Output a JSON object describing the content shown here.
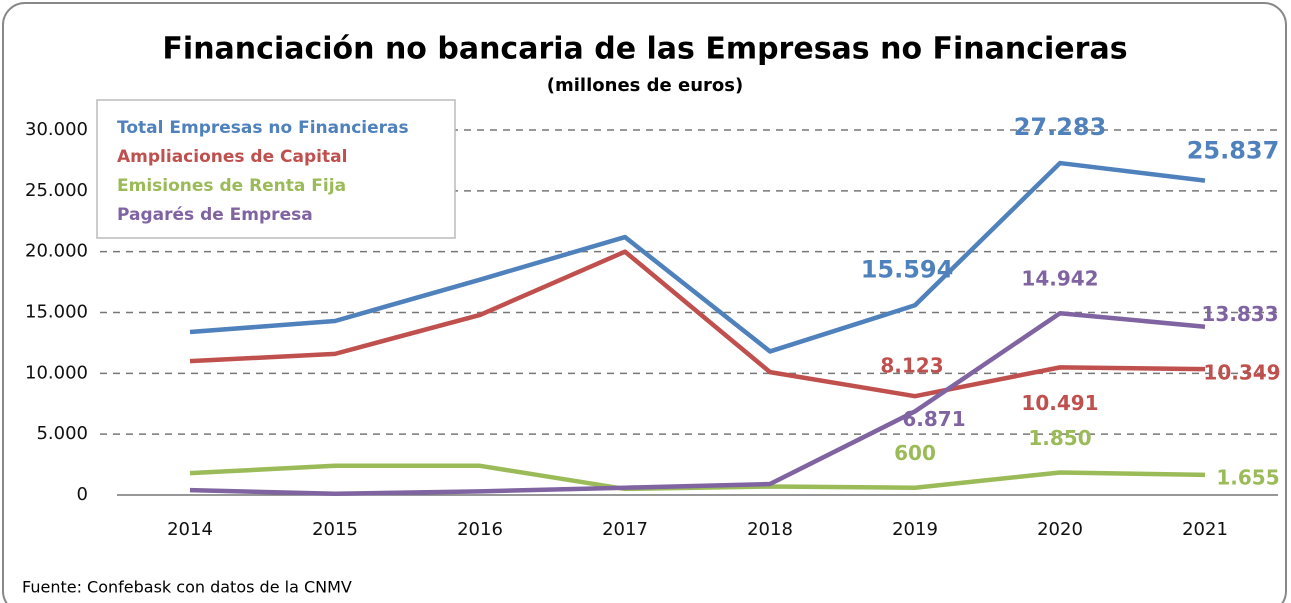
{
  "chart_data": {
    "type": "line",
    "title": "Financiación no bancaria de las Empresas no Financieras",
    "subtitle": "(millones de euros)",
    "source": "Fuente: Confebask con datos de la CNMV",
    "categories": [
      "2014",
      "2015",
      "2016",
      "2017",
      "2018",
      "2019",
      "2020",
      "2021"
    ],
    "series": [
      {
        "name": "Total Empresas no Financieras",
        "color": "#4f81bd",
        "values": [
          13400,
          14300,
          17700,
          21200,
          11800,
          15594,
          27283,
          25837
        ],
        "value_labels": [
          null,
          null,
          null,
          null,
          null,
          "15.594",
          "27.283",
          "25.837"
        ]
      },
      {
        "name": "Ampliaciones de Capital",
        "color": "#c0504d",
        "values": [
          11000,
          11600,
          14800,
          20000,
          10100,
          8123,
          10491,
          10349
        ],
        "value_labels": [
          null,
          null,
          null,
          null,
          null,
          "8.123",
          "10.491",
          "10.349"
        ]
      },
      {
        "name": "Emisiones de Renta Fija",
        "color": "#9bbb59",
        "values": [
          1800,
          2400,
          2400,
          500,
          700,
          600,
          1850,
          1655
        ],
        "value_labels": [
          null,
          null,
          null,
          null,
          null,
          "600",
          "1.850",
          "1.655"
        ]
      },
      {
        "name": "Pagarés de Empresa",
        "color": "#8064a2",
        "values": [
          400,
          100,
          300,
          600,
          900,
          6871,
          14942,
          13833
        ],
        "value_labels": [
          null,
          null,
          null,
          null,
          null,
          "6.871",
          "14.942",
          "13.833"
        ]
      }
    ],
    "ylim": [
      0,
      30000
    ],
    "yticks": [
      0,
      {
        "value": 5000,
        "label": "5.000"
      },
      {
        "value": 10000,
        "label": "10.000"
      },
      {
        "value": 15000,
        "label": "15.000"
      },
      {
        "value": 20000,
        "label": "20.000"
      },
      {
        "value": 25000,
        "label": "25.000"
      },
      {
        "value": 30000,
        "label": "30.000"
      }
    ],
    "grid": true,
    "legend": "top-left"
  }
}
